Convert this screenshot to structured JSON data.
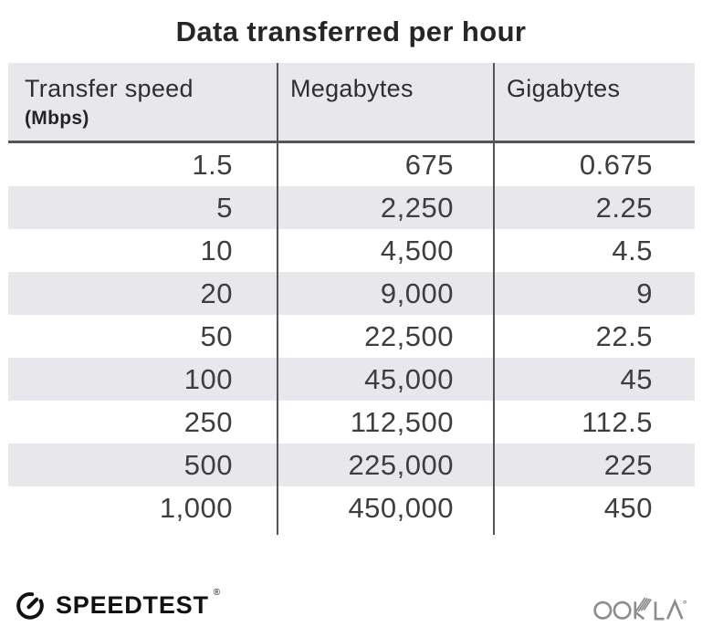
{
  "title": "Data transferred per hour",
  "table": {
    "columns": [
      {
        "label": "Transfer speed",
        "sublabel": "(Mbps)"
      },
      {
        "label": "Megabytes"
      },
      {
        "label": "Gigabytes"
      }
    ],
    "rows": [
      {
        "speed": "1.5",
        "megabytes": "675",
        "gigabytes": "0.675"
      },
      {
        "speed": "5",
        "megabytes": "2,250",
        "gigabytes": "2.25"
      },
      {
        "speed": "10",
        "megabytes": "4,500",
        "gigabytes": "4.5"
      },
      {
        "speed": "20",
        "megabytes": "9,000",
        "gigabytes": "9"
      },
      {
        "speed": "50",
        "megabytes": "22,500",
        "gigabytes": "22.5"
      },
      {
        "speed": "100",
        "megabytes": "45,000",
        "gigabytes": "45"
      },
      {
        "speed": "250",
        "megabytes": "112,500",
        "gigabytes": "112.5"
      },
      {
        "speed": "500",
        "megabytes": "225,000",
        "gigabytes": "225"
      },
      {
        "speed": "1,000",
        "megabytes": "450,000",
        "gigabytes": "450"
      }
    ]
  },
  "chart_data": {
    "type": "table",
    "title": "Data transferred per hour",
    "columns": [
      "Transfer speed (Mbps)",
      "Megabytes",
      "Gigabytes"
    ],
    "rows": [
      [
        1.5,
        675,
        0.675
      ],
      [
        5,
        2250,
        2.25
      ],
      [
        10,
        4500,
        4.5
      ],
      [
        20,
        9000,
        9
      ],
      [
        50,
        22500,
        22.5
      ],
      [
        100,
        45000,
        45
      ],
      [
        250,
        112500,
        112.5
      ],
      [
        500,
        225000,
        225
      ],
      [
        1000,
        450000,
        450
      ]
    ]
  },
  "footer": {
    "speedtest_label": "SPEEDTEST",
    "speedtest_trademark": "®",
    "ookla_label": "OOKLA"
  },
  "colors": {
    "stripe_bg": "#e8e8ec",
    "divider": "#545456",
    "title_text": "#262626",
    "cell_text": "#3e3e3e",
    "speedtest_black": "#111111",
    "ookla_gray": "#8d8d8d"
  }
}
